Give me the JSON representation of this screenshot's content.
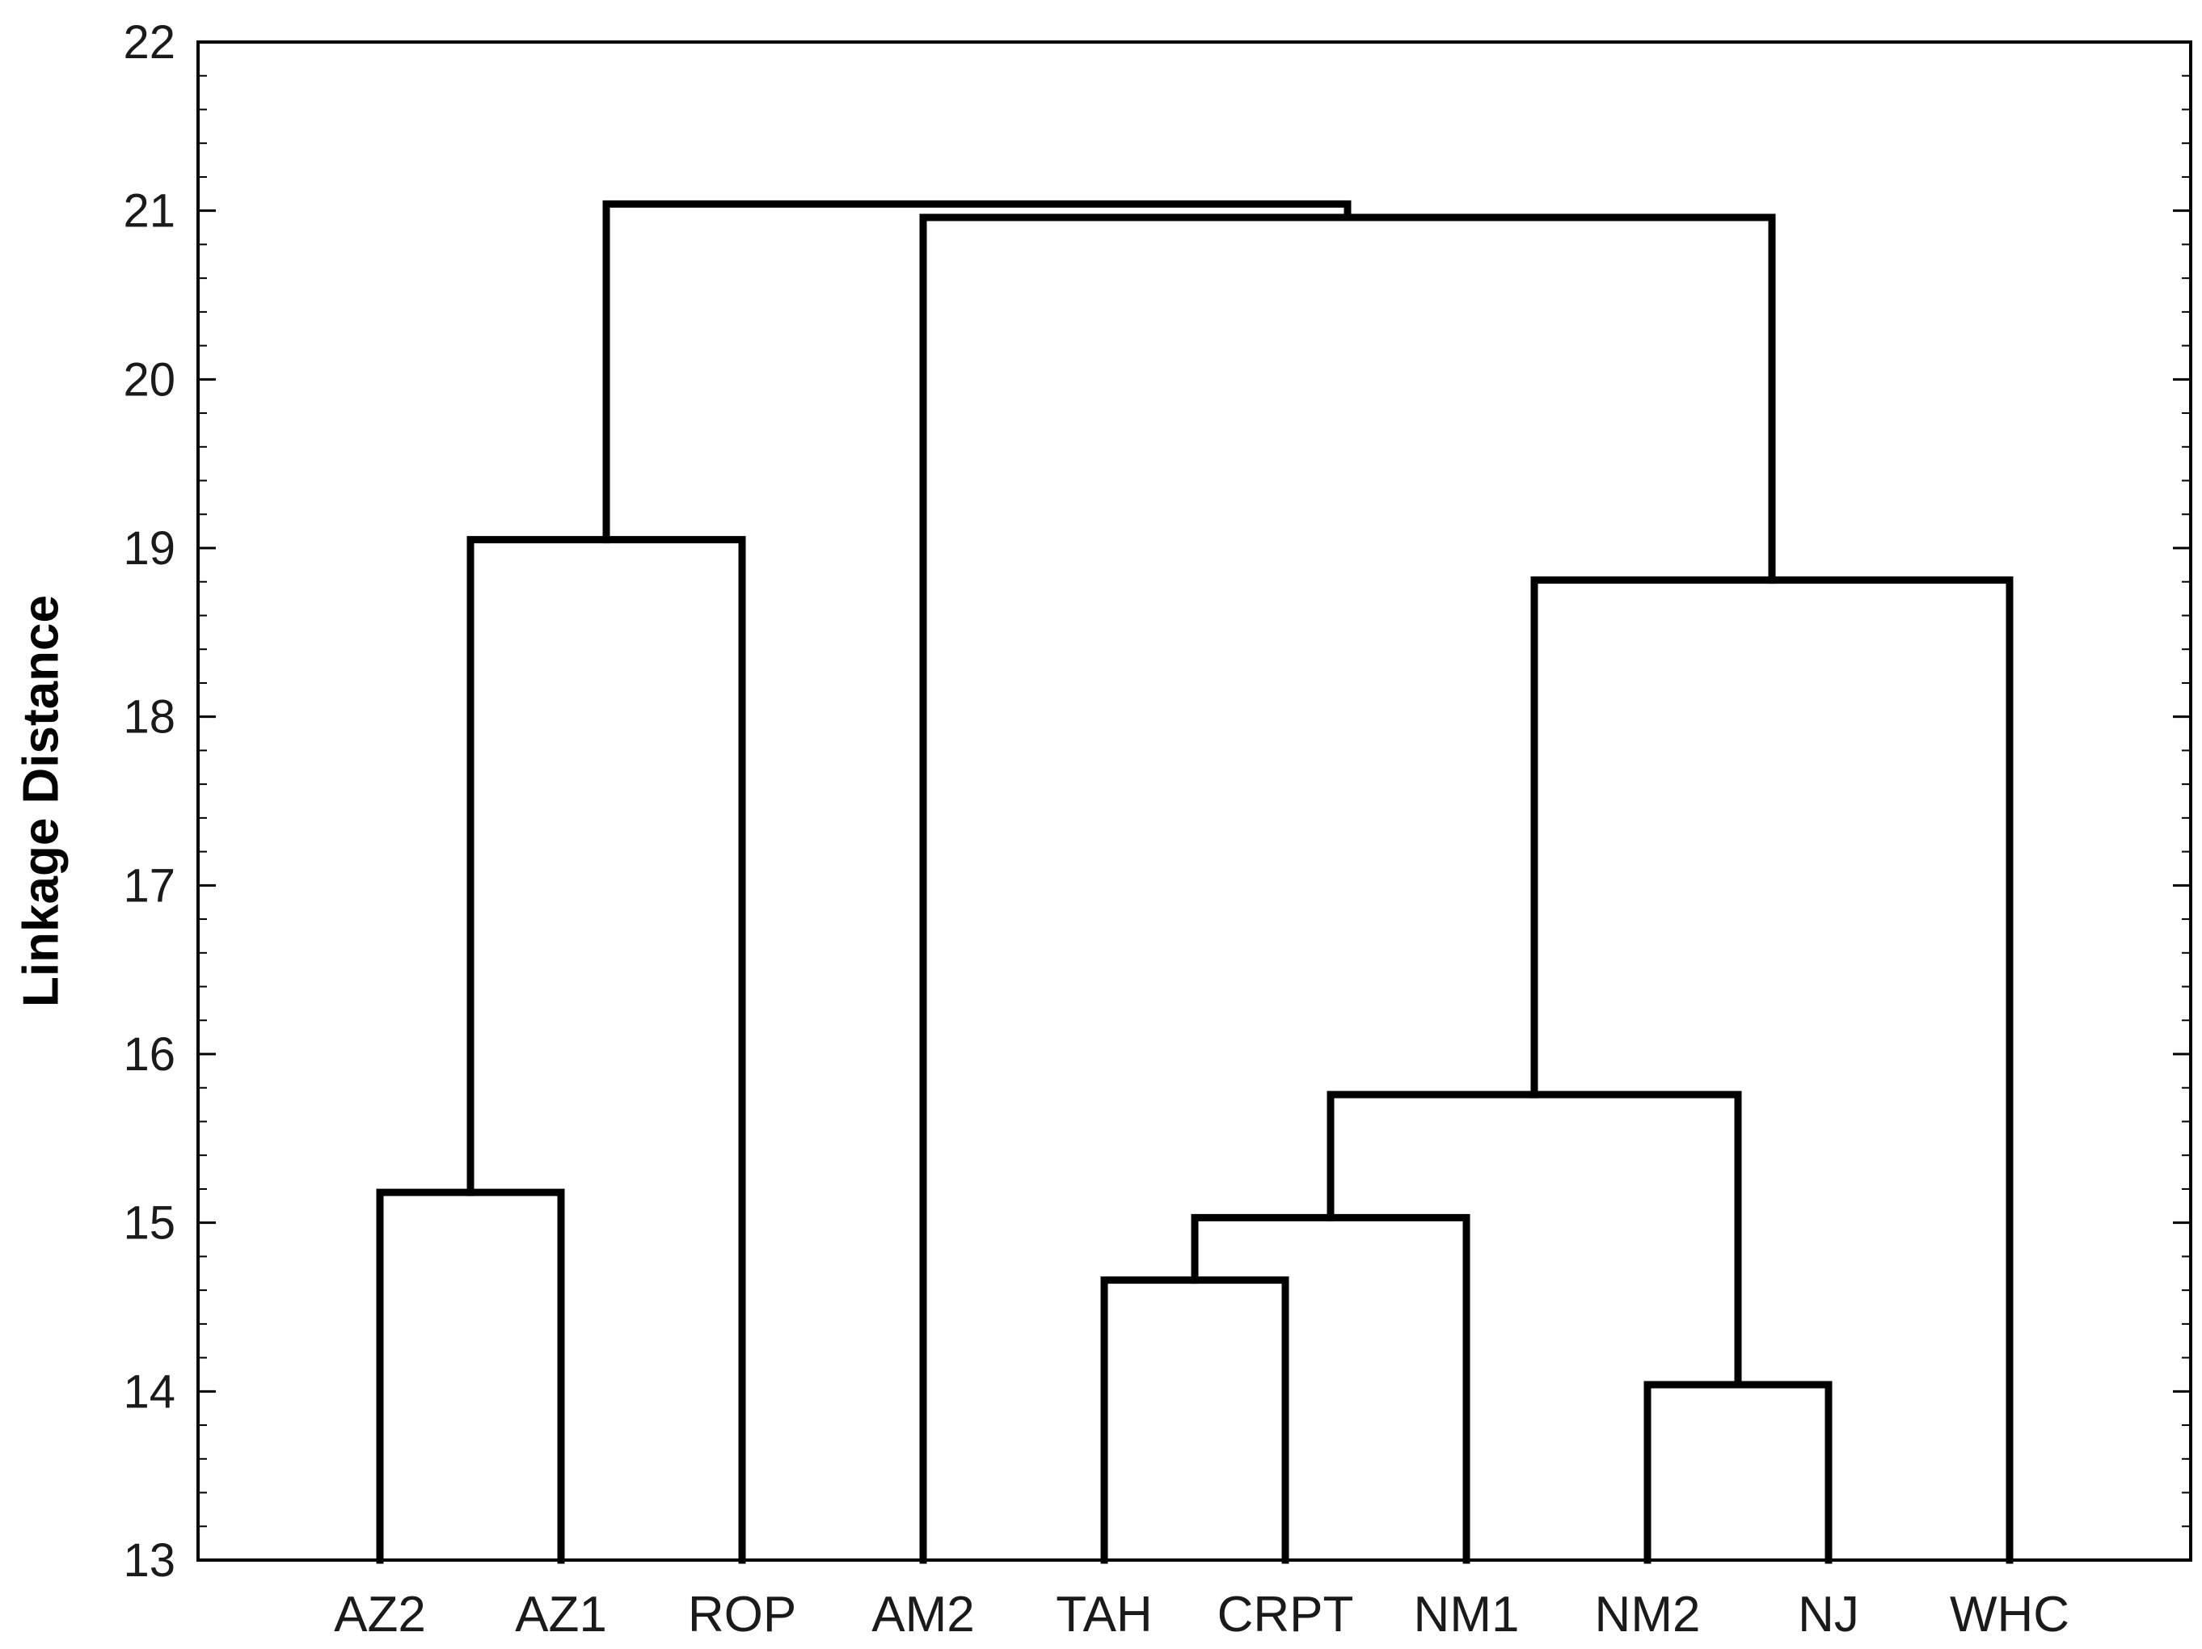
{
  "chart_data": {
    "type": "dendrogram",
    "title": "",
    "xlabel": "",
    "ylabel": "Linkage Distance",
    "ylim": [
      13,
      22
    ],
    "yticks": [
      13,
      14,
      15,
      16,
      17,
      18,
      19,
      20,
      21,
      22
    ],
    "grid": false,
    "leaves": [
      "AZ2",
      "AZ1",
      "ROP",
      "AM2",
      "TAH",
      "CRPT",
      "NM1",
      "NM2",
      "NJ",
      "WHC"
    ],
    "merges": [
      {
        "left": "AZ2",
        "right": "AZ1",
        "height": 15.18
      },
      {
        "left": "AZ2+AZ1",
        "right": "ROP",
        "height": 19.05
      },
      {
        "left": "TAH",
        "right": "CRPT",
        "height": 14.66
      },
      {
        "left": "TAH+CRPT",
        "right": "NM1",
        "height": 15.03
      },
      {
        "left": "NM2",
        "right": "NJ",
        "height": 14.04
      },
      {
        "left": "TAH+CRPT+NM1",
        "right": "NM2+NJ",
        "height": 15.76
      },
      {
        "left": "TAH+CRPT+NM1+NM2+NJ",
        "right": "WHC",
        "height": 18.81
      },
      {
        "left": "AM2",
        "right": "TAH+CRPT+NM1+NM2+NJ+WHC",
        "height": 20.96
      },
      {
        "left": "AZ2+AZ1+ROP",
        "right": "AM2+TAH+CRPT+NM1+NM2+NJ+WHC",
        "height": 21.04
      }
    ]
  },
  "colors": {
    "line": "#000000",
    "frame": "#000000",
    "text": "#1a1a1a",
    "background": "#ffffff"
  }
}
